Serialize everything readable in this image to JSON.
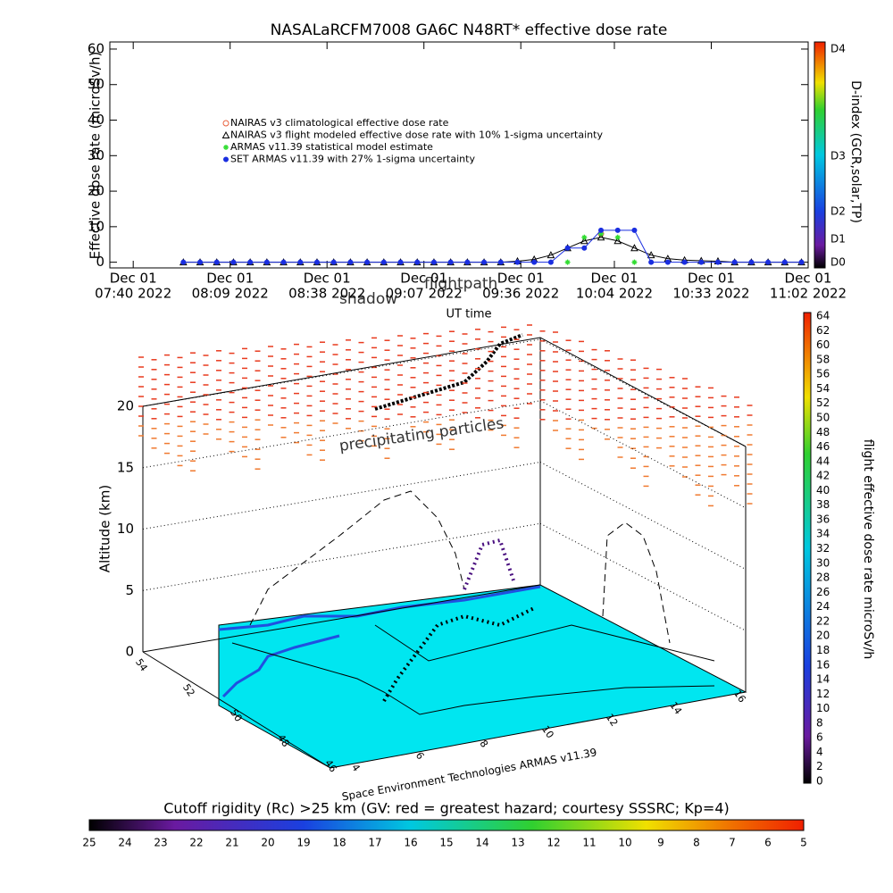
{
  "chart_data": [
    {
      "type": "scatter",
      "title": "NASALaRCFM7008  GA6C N48RT* effective dose rate",
      "ylabel": "Effective dose rate (microSv/h)",
      "xlabel": "UT time",
      "x": [
        "2022-12-01T07:55",
        "2022-12-01T08:00",
        "2022-12-01T08:05",
        "2022-12-01T08:10",
        "2022-12-01T08:15",
        "2022-12-01T08:20",
        "2022-12-01T08:25",
        "2022-12-01T08:30",
        "2022-12-01T08:35",
        "2022-12-01T08:40",
        "2022-12-01T08:45",
        "2022-12-01T08:50",
        "2022-12-01T08:55",
        "2022-12-01T09:00",
        "2022-12-01T09:05",
        "2022-12-01T09:10",
        "2022-12-01T09:15",
        "2022-12-01T09:20",
        "2022-12-01T09:25",
        "2022-12-01T09:30",
        "2022-12-01T09:35",
        "2022-12-01T09:40",
        "2022-12-01T09:45",
        "2022-12-01T09:50",
        "2022-12-01T09:55",
        "2022-12-01T10:00",
        "2022-12-01T10:05",
        "2022-12-01T10:10",
        "2022-12-01T10:15",
        "2022-12-01T10:20",
        "2022-12-01T10:25",
        "2022-12-01T10:30",
        "2022-12-01T10:35",
        "2022-12-01T10:40",
        "2022-12-01T10:45",
        "2022-12-01T10:50",
        "2022-12-01T10:55",
        "2022-12-01T11:00"
      ],
      "series": [
        {
          "name": "NAIRAS v3 climatological effective dose rate",
          "color": "#e8603c",
          "marker": "circle-open",
          "values": [
            null,
            null,
            null,
            null,
            null,
            null,
            null,
            null,
            null,
            null,
            null,
            null,
            null,
            null,
            null,
            null,
            null,
            null,
            null,
            null,
            null,
            null,
            null,
            null,
            null,
            8,
            null,
            null,
            null,
            null,
            null,
            null,
            null,
            null,
            null,
            null,
            null,
            null
          ]
        },
        {
          "name": "NAIRAS v3 flight modeled effective dose rate with 10% 1-sigma uncertainty",
          "color": "#000000",
          "marker": "triangle",
          "values": [
            0,
            0,
            0,
            0,
            0,
            0,
            0,
            0,
            0,
            0,
            0,
            0,
            0,
            0,
            0,
            0,
            0,
            0,
            0,
            0,
            0.3,
            0.8,
            2,
            4,
            6,
            7,
            6,
            4,
            2,
            1,
            0.6,
            0.4,
            0.3,
            0,
            0,
            0,
            0,
            0
          ]
        },
        {
          "name": "ARMAS v11.39 statistical model estimate",
          "color": "#33dd33",
          "marker": "star",
          "values": [
            null,
            null,
            null,
            null,
            null,
            null,
            null,
            null,
            null,
            null,
            null,
            null,
            null,
            null,
            null,
            null,
            null,
            null,
            null,
            null,
            null,
            null,
            null,
            0,
            7,
            8,
            7,
            0,
            null,
            null,
            null,
            null,
            null,
            null,
            null,
            null,
            null,
            null
          ]
        },
        {
          "name": "SET ARMAS v11.39 with 27% 1-sigma uncertainty",
          "color": "#1a2ee0",
          "marker": "circle",
          "values": [
            0,
            0,
            0,
            0,
            0,
            0,
            0,
            0,
            0,
            0,
            0,
            0,
            0,
            0,
            0,
            0,
            0,
            0,
            0,
            0,
            0,
            0,
            0,
            4,
            4,
            9,
            9,
            9,
            0,
            0,
            0,
            0,
            0,
            0,
            0,
            0,
            0,
            0
          ]
        }
      ],
      "xlim": [
        "2022-12-01T07:33",
        "2022-12-01T11:02"
      ],
      "xticks": [
        {
          "value": "2022-12-01T07:40",
          "label": [
            "Dec 01",
            "07:40 2022"
          ]
        },
        {
          "value": "2022-12-01T08:09",
          "label": [
            "Dec 01",
            "08:09 2022"
          ]
        },
        {
          "value": "2022-12-01T08:38",
          "label": [
            "Dec 01",
            "08:38 2022"
          ]
        },
        {
          "value": "2022-12-01T09:07",
          "label": [
            "Dec 01",
            "09:07 2022"
          ]
        },
        {
          "value": "2022-12-01T09:36",
          "label": [
            "Dec 01",
            "09:36 2022"
          ]
        },
        {
          "value": "2022-12-01T10:04",
          "label": [
            "Dec 01",
            "10:04 2022"
          ]
        },
        {
          "value": "2022-12-01T10:33",
          "label": [
            "Dec 01",
            "10:33 2022"
          ]
        },
        {
          "value": "2022-12-01T11:02",
          "label": [
            "Dec 01",
            "11:02 2022"
          ]
        }
      ],
      "ylim": [
        -1.6,
        62
      ],
      "yticks": [
        0,
        10,
        20,
        30,
        40,
        50,
        60
      ]
    }
  ],
  "dindex": {
    "label": "D-index (GCR,solar,TP)",
    "ticks": [
      "D4",
      "D3",
      "D2",
      "D1",
      "D0"
    ]
  },
  "scene": {
    "annotations": [
      "shadow",
      "flightpath",
      "precipitating particles"
    ],
    "altitude_label": "Altitude (km)",
    "altitude_ticks": [
      0,
      5,
      10,
      15,
      20
    ],
    "latitude_ticks": [
      54,
      52,
      50,
      48,
      46
    ],
    "longitude_ticks": [
      4,
      6,
      8,
      10,
      12,
      14,
      16
    ],
    "credit": "Space Environment Technologies ARMAS v11.39"
  },
  "dose_colorbar": {
    "label": "flight effective dose rate microSv/h",
    "ticks": [
      0,
      2,
      4,
      6,
      8,
      10,
      12,
      14,
      16,
      18,
      20,
      22,
      24,
      26,
      28,
      30,
      32,
      34,
      36,
      38,
      40,
      42,
      44,
      46,
      48,
      50,
      52,
      54,
      56,
      58,
      60,
      62,
      64
    ]
  },
  "rigidity_colorbar": {
    "label": "Cutoff rigidity (Rc) >25 km (GV: red = greatest hazard; courtesy SSSRC; Kp=4)",
    "ticks": [
      25,
      24,
      23,
      22,
      21,
      20,
      19,
      18,
      17,
      16,
      15,
      14,
      13,
      12,
      11,
      10,
      9,
      8,
      7,
      6,
      5
    ]
  }
}
